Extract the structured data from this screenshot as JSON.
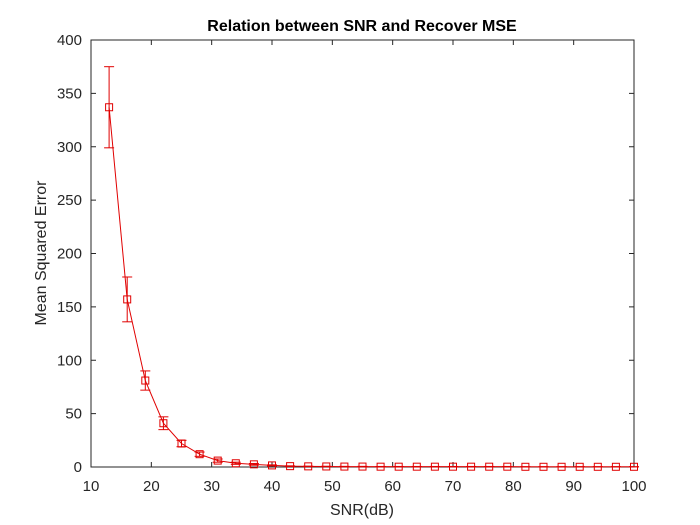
{
  "chart_data": {
    "type": "line",
    "title": "Relation between SNR and Recover MSE",
    "xlabel": "SNR(dB)",
    "ylabel": "Mean Squared Error",
    "xlim": [
      10,
      100
    ],
    "ylim": [
      0,
      400
    ],
    "xticks": [
      "10",
      "20",
      "30",
      "40",
      "50",
      "60",
      "70",
      "80",
      "90",
      "100"
    ],
    "yticks": [
      "0",
      "50",
      "100",
      "150",
      "200",
      "250",
      "300",
      "350",
      "400"
    ],
    "grid": false,
    "marker": "square",
    "series": [
      {
        "color": "#e00000",
        "x": [
          13,
          16,
          19,
          22,
          25,
          28,
          31,
          34,
          37,
          40,
          43,
          46,
          49,
          52,
          55,
          58,
          61,
          64,
          67,
          70,
          73,
          76,
          79,
          82,
          85,
          88,
          91,
          94,
          97,
          100
        ],
        "y": [
          337,
          157,
          81,
          41,
          22,
          12,
          6,
          3.5,
          2.5,
          1.5,
          0.8,
          0.6,
          0.5,
          0.4,
          0.4,
          0.3,
          0.3,
          0.3,
          0.3,
          0.3,
          0.3,
          0.3,
          0.3,
          0.2,
          0.2,
          0.2,
          0.2,
          0.2,
          0.2,
          0.2
        ],
        "err": [
          38,
          21,
          9,
          6,
          3,
          2,
          1.5,
          1,
          0.8,
          0.5,
          0.3,
          0.2,
          0.2,
          0.2,
          0.2,
          0.2,
          0.2,
          0.2,
          0.2,
          0.2,
          0.2,
          0.2,
          0.2,
          0.1,
          0.1,
          0.1,
          0.1,
          0.1,
          0.1,
          0.1
        ]
      }
    ]
  }
}
